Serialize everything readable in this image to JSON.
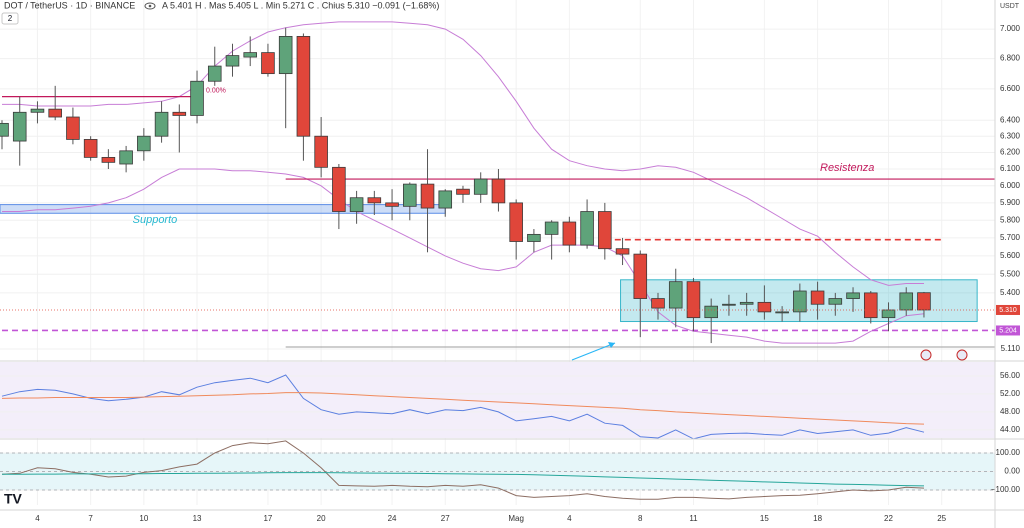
{
  "chart_data": [
    {
      "type": "candlestick",
      "title": "DOT / TetherUS · 1D · BINANCE",
      "subtitle": "A 5.401  H . Mas 5.405  L . Min 5.271  C . Chius 5.310  −0.091 (−1.68%)",
      "badge": "2",
      "currency": "USDT",
      "categories": [
        null,
        null,
        "4",
        null,
        null,
        "7",
        null,
        null,
        "10",
        null,
        null,
        "13",
        null,
        null,
        null,
        "17",
        null,
        null,
        "20",
        null,
        null,
        null,
        "24",
        null,
        null,
        "27",
        null,
        null,
        null,
        "Mag",
        null,
        null,
        "4",
        null,
        null,
        null,
        "8",
        null,
        null,
        "11",
        null,
        null,
        null,
        "15",
        null,
        null,
        "18",
        null,
        null,
        null,
        "22",
        null,
        null,
        "25"
      ],
      "open": [
        6.3,
        6.27,
        6.45,
        6.47,
        6.42,
        6.28,
        6.17,
        6.13,
        6.21,
        6.3,
        6.45,
        6.43,
        6.65,
        6.75,
        6.81,
        6.84,
        6.7,
        6.95,
        6.3,
        6.11,
        5.85,
        5.93,
        5.9,
        5.88,
        6.01,
        5.87,
        5.98,
        5.95,
        6.04,
        5.9,
        5.68,
        5.72,
        5.79,
        5.66,
        5.85,
        5.64,
        5.61,
        5.37,
        5.32,
        5.46,
        5.27,
        5.34,
        5.34,
        5.35,
        5.3,
        5.3,
        5.41,
        5.34,
        5.37,
        5.4,
        5.27,
        5.31,
        5.401,
        null
      ],
      "high": [
        6.4,
        6.55,
        6.52,
        6.62,
        6.48,
        6.3,
        6.22,
        6.24,
        6.35,
        6.52,
        6.5,
        6.72,
        6.88,
        6.9,
        6.95,
        6.9,
        7.01,
        6.97,
        6.42,
        6.13,
        5.97,
        5.97,
        5.98,
        6.02,
        6.22,
        5.98,
        6.0,
        6.08,
        6.1,
        5.92,
        5.75,
        5.8,
        5.82,
        5.92,
        5.9,
        5.7,
        5.63,
        5.4,
        5.53,
        5.48,
        5.37,
        5.39,
        5.4,
        5.44,
        5.33,
        5.45,
        5.46,
        5.4,
        5.43,
        5.41,
        5.35,
        5.43,
        5.405,
        null
      ],
      "low": [
        6.22,
        6.12,
        6.38,
        6.4,
        6.25,
        6.15,
        6.1,
        6.08,
        6.15,
        6.26,
        6.2,
        6.38,
        6.62,
        6.68,
        6.75,
        6.68,
        6.35,
        6.15,
        6.05,
        5.75,
        5.78,
        5.83,
        5.8,
        5.8,
        5.62,
        5.82,
        5.9,
        5.9,
        5.85,
        5.58,
        5.62,
        5.58,
        5.62,
        5.64,
        5.58,
        5.55,
        5.17,
        5.26,
        5.22,
        5.2,
        5.14,
        5.28,
        5.28,
        5.26,
        5.25,
        5.25,
        5.26,
        5.28,
        5.3,
        5.24,
        5.2,
        5.28,
        5.271,
        null
      ],
      "close": [
        6.38,
        6.45,
        6.47,
        6.42,
        6.28,
        6.17,
        6.14,
        6.21,
        6.3,
        6.45,
        6.43,
        6.65,
        6.75,
        6.82,
        6.84,
        6.7,
        6.95,
        6.3,
        6.11,
        5.85,
        5.93,
        5.9,
        5.88,
        6.01,
        5.87,
        5.97,
        5.95,
        6.04,
        5.9,
        5.68,
        5.72,
        5.79,
        5.66,
        5.85,
        5.64,
        5.61,
        5.37,
        5.32,
        5.46,
        5.27,
        5.33,
        5.34,
        5.35,
        5.3,
        5.3,
        5.41,
        5.34,
        5.37,
        5.4,
        5.27,
        5.31,
        5.4,
        5.31,
        null
      ],
      "up_color": "#5fa37a",
      "down_color": "#e0463a",
      "series": [
        {
          "color": "#c77dd6",
          "values": [
            6.5,
            6.5,
            6.49,
            6.49,
            6.49,
            6.49,
            6.5,
            6.5,
            6.51,
            6.52,
            6.55,
            6.62,
            6.75,
            6.85,
            6.92,
            6.98,
            7.01,
            7.03,
            7.04,
            7.05,
            7.05,
            7.05,
            7.05,
            7.04,
            7.03,
            7.0,
            6.93,
            6.82,
            6.68,
            6.52,
            6.35,
            6.22,
            6.15,
            6.12,
            6.1,
            6.09,
            6.1,
            6.12,
            6.11,
            6.08,
            6.03,
            5.98,
            5.93,
            5.87,
            5.81,
            5.75,
            5.71,
            5.62,
            5.54,
            5.47,
            5.44,
            5.45,
            5.45,
            null
          ]
        },
        {
          "color": "#c77dd6",
          "values": [
            5.85,
            5.85,
            5.86,
            5.86,
            5.87,
            5.88,
            5.9,
            5.93,
            5.98,
            6.05,
            6.1,
            6.1,
            6.1,
            6.09,
            6.09,
            6.08,
            6.07,
            6.05,
            6.0,
            5.92,
            5.85,
            5.8,
            5.75,
            5.7,
            5.65,
            5.6,
            5.56,
            5.53,
            5.52,
            5.54,
            5.62,
            5.66,
            5.66,
            5.66,
            5.65,
            5.6,
            5.45,
            5.3,
            5.23,
            5.2,
            5.19,
            5.18,
            5.17,
            5.15,
            5.14,
            5.14,
            5.14,
            5.14,
            5.15,
            5.2,
            5.24,
            5.28,
            5.29,
            null
          ]
        }
      ],
      "zones": [
        {
          "low": 5.84,
          "high": 5.89,
          "from": 0,
          "to": 25,
          "color": "#5b8de6",
          "label": "Supporto",
          "label_color": "#26b8d0"
        },
        {
          "low": 5.25,
          "high": 5.47,
          "from": 35,
          "to": 55,
          "color": "#37b6c9"
        }
      ],
      "levels": [
        {
          "value": 6.04,
          "from": 16,
          "to": 56,
          "color": "#c2185b",
          "label": "Resistenza"
        },
        {
          "value": 6.55,
          "from": 0,
          "to": 11,
          "color": "#c2185b",
          "label": "0.00%"
        },
        {
          "value": 5.69,
          "from": 34,
          "to": 53,
          "color": "#e53935",
          "dashed": true
        },
        {
          "value": 5.204,
          "from": 0,
          "to": 56,
          "color": "#c156d6",
          "dashed": true,
          "price_label": "5.204"
        },
        {
          "value": 5.12,
          "from": 16,
          "to": 56,
          "color": "#b0b0b0"
        }
      ],
      "last_price": {
        "value": 5.31,
        "label": "5.310",
        "color": "#e0463a"
      },
      "log": true,
      "grid": true,
      "ylim": [
        5.055,
        7.063
      ],
      "yticks": [
        {
          "value": 7.0,
          "label": "7.000"
        },
        {
          "value": 6.8,
          "label": "6.800"
        },
        {
          "value": 6.6,
          "label": "6.600"
        },
        {
          "value": 6.4,
          "label": "6.400"
        },
        {
          "value": 6.3,
          "label": "6.300"
        },
        {
          "value": 6.2,
          "label": "6.200"
        },
        {
          "value": 6.1,
          "label": "6.100"
        },
        {
          "value": 6.0,
          "label": "6.000"
        },
        {
          "value": 5.9,
          "label": "5.900"
        },
        {
          "value": 5.8,
          "label": "5.800"
        },
        {
          "value": 5.7,
          "label": "5.700"
        },
        {
          "value": 5.6,
          "label": "5.600"
        },
        {
          "value": 5.5,
          "label": "5.500"
        },
        {
          "value": 5.4,
          "label": "5.400"
        },
        {
          "value": 5.11,
          "label": "5.110"
        }
      ]
    },
    {
      "type": "line",
      "series": [
        {
          "color": "#5b7fe0",
          "values": [
            51.5,
            52.5,
            53.0,
            52.8,
            52.0,
            51.0,
            50.5,
            50.8,
            51.3,
            52.5,
            51.8,
            53.5,
            54.5,
            55.0,
            55.5,
            54.5,
            56.2,
            51.0,
            48.5,
            47.5,
            48.0,
            47.8,
            47.6,
            48.5,
            47.6,
            48.5,
            48.3,
            49.0,
            48.0,
            46.0,
            46.5,
            47.0,
            46.0,
            47.5,
            45.5,
            45.0,
            42.5,
            42.2,
            44.0,
            42.0,
            43.0,
            43.2,
            43.3,
            43.0,
            42.8,
            44.0,
            43.2,
            43.6,
            44.0,
            42.8,
            43.3,
            44.5,
            43.5,
            null
          ]
        },
        {
          "color": "#f08a5d",
          "values": [
            51.0,
            51.1,
            51.1,
            51.2,
            51.2,
            51.2,
            51.2,
            51.2,
            51.3,
            51.4,
            51.5,
            51.6,
            51.7,
            51.8,
            52.0,
            52.1,
            52.3,
            52.3,
            52.2,
            52.0,
            51.8,
            51.6,
            51.4,
            51.2,
            51.0,
            50.8,
            50.6,
            50.4,
            50.2,
            50.0,
            49.8,
            49.6,
            49.4,
            49.2,
            49.0,
            48.8,
            48.5,
            48.3,
            48.0,
            47.8,
            47.6,
            47.4,
            47.2,
            47.0,
            46.8,
            46.6,
            46.4,
            46.2,
            46.0,
            45.8,
            45.6,
            45.4,
            45.3,
            null
          ]
        }
      ],
      "background": "#f3eefa",
      "ylim": [
        42.2,
        59.1
      ],
      "yticks": [
        {
          "value": 56,
          "label": "56.00"
        },
        {
          "value": 52,
          "label": "52.00"
        },
        {
          "value": 48,
          "label": "48.00"
        },
        {
          "value": 44,
          "label": "44.00"
        }
      ]
    },
    {
      "type": "line",
      "series": [
        {
          "color": "#8d6e63",
          "values": [
            -15,
            -10,
            20,
            15,
            -5,
            -15,
            -30,
            -25,
            -5,
            5,
            25,
            40,
            100,
            140,
            155,
            150,
            165,
            100,
            20,
            -75,
            -78,
            -80,
            -75,
            -80,
            -82,
            -75,
            -80,
            -72,
            -90,
            -130,
            -140,
            -135,
            -130,
            -120,
            -135,
            -145,
            -150,
            -150,
            -140,
            -140,
            -145,
            -148,
            -140,
            -135,
            -130,
            -128,
            -120,
            -110,
            -100,
            -105,
            -100,
            -85,
            -90,
            null
          ]
        },
        {
          "color": "#26a69a",
          "values": [
            -15,
            -15,
            -14,
            -14,
            -13,
            -13,
            -12,
            -12,
            -12,
            -11,
            -11,
            -10,
            -10,
            -9,
            -8,
            -7,
            -6,
            -6,
            -6,
            -7,
            -8,
            -9,
            -10,
            -10,
            -11,
            -12,
            -13,
            -14,
            -15,
            -16,
            -18,
            -20,
            -23,
            -26,
            -29,
            -32,
            -35,
            -38,
            -41,
            -44,
            -47,
            -50,
            -53,
            -56,
            -59,
            -62,
            -65,
            -68,
            -70,
            -72,
            -74,
            -76,
            -78,
            null
          ]
        }
      ],
      "background": "#e6f6f9",
      "ylim": [
        -181,
        170
      ],
      "yticks": [
        {
          "value": 100,
          "label": "100.00"
        },
        {
          "value": 0,
          "label": "0.00"
        },
        {
          "value": -100,
          "label": "−100.00"
        }
      ]
    }
  ]
}
